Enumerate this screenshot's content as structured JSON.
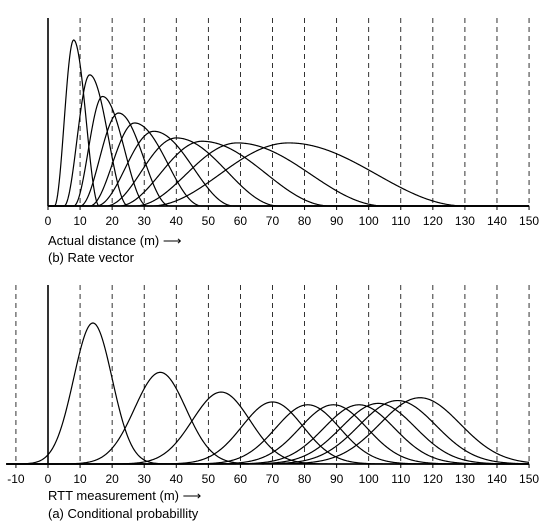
{
  "chart_data": [
    {
      "type": "line",
      "panel": "top",
      "xlabel": "Actual distance (m) ⟶",
      "caption": "(b) Rate vector",
      "xlim": [
        0,
        150
      ],
      "xticks": [
        0,
        10,
        20,
        30,
        40,
        50,
        60,
        70,
        80,
        90,
        100,
        110,
        120,
        130,
        140,
        150
      ],
      "grid": "vertical dashed at every tick",
      "y_axis": "unlabeled, normalized",
      "series": [
        {
          "peak_x": 8,
          "peak_height": 1.0,
          "start_x": 2,
          "end_x": 16
        },
        {
          "peak_x": 13,
          "peak_height": 0.79,
          "start_x": 5,
          "end_x": 25
        },
        {
          "peak_x": 17,
          "peak_height": 0.66,
          "start_x": 8,
          "end_x": 31
        },
        {
          "peak_x": 22,
          "peak_height": 0.56,
          "start_x": 10,
          "end_x": 38
        },
        {
          "peak_x": 27,
          "peak_height": 0.5,
          "start_x": 13,
          "end_x": 48
        },
        {
          "peak_x": 33,
          "peak_height": 0.45,
          "start_x": 15,
          "end_x": 58
        },
        {
          "peak_x": 40,
          "peak_height": 0.41,
          "start_x": 18,
          "end_x": 72
        },
        {
          "peak_x": 48,
          "peak_height": 0.39,
          "start_x": 22,
          "end_x": 88
        },
        {
          "peak_x": 59,
          "peak_height": 0.38,
          "start_x": 27,
          "end_x": 105
        },
        {
          "peak_x": 75,
          "peak_height": 0.38,
          "start_x": 32,
          "end_x": 130
        }
      ]
    },
    {
      "type": "line",
      "panel": "bottom",
      "xlabel": "RTT measurement (m) ⟶",
      "caption": "(a) Conditional probabillity",
      "xlim": [
        -13,
        150
      ],
      "xticks": [
        -10,
        0,
        10,
        20,
        30,
        40,
        50,
        60,
        70,
        80,
        90,
        100,
        110,
        120,
        130,
        140,
        150
      ],
      "grid": "vertical dashed at every tick",
      "y_axis": "unlabeled, normalized",
      "series": [
        {
          "mean": 14,
          "sd": 6.0,
          "peak_height": 1.0
        },
        {
          "mean": 35,
          "sd": 8.0,
          "peak_height": 0.65
        },
        {
          "mean": 54,
          "sd": 9.0,
          "peak_height": 0.51
        },
        {
          "mean": 70,
          "sd": 9.5,
          "peak_height": 0.44
        },
        {
          "mean": 81,
          "sd": 10.0,
          "peak_height": 0.42
        },
        {
          "mean": 89,
          "sd": 10.5,
          "peak_height": 0.42
        },
        {
          "mean": 97,
          "sd": 11.0,
          "peak_height": 0.42
        },
        {
          "mean": 103,
          "sd": 11.5,
          "peak_height": 0.43
        },
        {
          "mean": 109,
          "sd": 12.0,
          "peak_height": 0.45
        },
        {
          "mean": 116,
          "sd": 12.5,
          "peak_height": 0.47
        }
      ]
    }
  ]
}
